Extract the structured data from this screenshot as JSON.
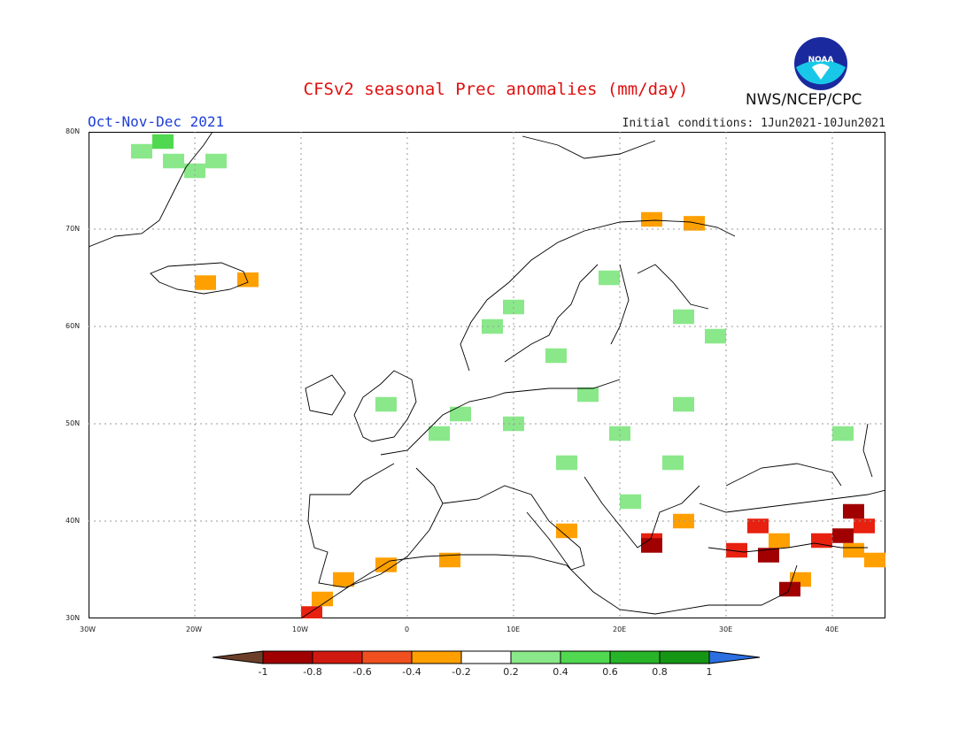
{
  "header": {
    "title": "CFSv2 seasonal Prec anomalies (mm/day)",
    "period": "Oct-Nov-Dec 2021",
    "initial_conditions": "Initial conditions: 1Jun2021-10Jun2021",
    "agency": "NWS/NCEP/CPC",
    "logo_text": "NOAA"
  },
  "map": {
    "lon_range": [
      -30,
      45
    ],
    "lat_range": [
      30,
      80
    ],
    "lat_ticks": [
      "80N",
      "70N",
      "60N",
      "50N",
      "40N",
      "30N"
    ],
    "lon_ticks": [
      "30W",
      "20W",
      "10W",
      "0",
      "10E",
      "20E",
      "30E",
      "40E"
    ],
    "grid": "dotted",
    "anomaly_cells": [
      {
        "lon": -23,
        "lat": 79,
        "category": "0.4-0.6"
      },
      {
        "lon": -25,
        "lat": 78,
        "category": "0.2-0.4"
      },
      {
        "lon": -22,
        "lat": 77,
        "category": "0.2-0.4"
      },
      {
        "lon": -20,
        "lat": 76,
        "category": "0.2-0.4"
      },
      {
        "lon": -18,
        "lat": 77,
        "category": "0.2-0.4"
      },
      {
        "lon": -19,
        "lat": 64.5,
        "category": "-0.4--0.2"
      },
      {
        "lon": -15,
        "lat": 64.8,
        "category": "-0.4--0.2"
      },
      {
        "lon": 10,
        "lat": 62,
        "category": "0.2-0.4"
      },
      {
        "lon": 8,
        "lat": 60,
        "category": "0.2-0.4"
      },
      {
        "lon": 19,
        "lat": 65,
        "category": "0.2-0.4"
      },
      {
        "lon": 26,
        "lat": 61,
        "category": "0.2-0.4"
      },
      {
        "lon": 29,
        "lat": 59,
        "category": "0.2-0.4"
      },
      {
        "lon": 14,
        "lat": 57,
        "category": "0.2-0.4"
      },
      {
        "lon": -2,
        "lat": 52,
        "category": "0.2-0.4"
      },
      {
        "lon": 5,
        "lat": 51,
        "category": "0.2-0.4"
      },
      {
        "lon": 10,
        "lat": 50,
        "category": "0.2-0.4"
      },
      {
        "lon": 3,
        "lat": 49,
        "category": "0.2-0.4"
      },
      {
        "lon": 17,
        "lat": 53,
        "category": "0.2-0.4"
      },
      {
        "lon": 26,
        "lat": 52,
        "category": "0.2-0.4"
      },
      {
        "lon": 20,
        "lat": 49,
        "category": "0.2-0.4"
      },
      {
        "lon": 25,
        "lat": 46,
        "category": "0.2-0.4"
      },
      {
        "lon": 21,
        "lat": 42,
        "category": "0.2-0.4"
      },
      {
        "lon": 15,
        "lat": 46,
        "category": "0.2-0.4"
      },
      {
        "lon": 41,
        "lat": 49,
        "category": "0.2-0.4"
      },
      {
        "lon": 23,
        "lat": 71,
        "category": "-0.4--0.2"
      },
      {
        "lon": 27,
        "lat": 70.6,
        "category": "-0.4--0.2"
      },
      {
        "lon": -8,
        "lat": 32,
        "category": "-0.4--0.2"
      },
      {
        "lon": -6,
        "lat": 34,
        "category": "-0.4--0.2"
      },
      {
        "lon": -2,
        "lat": 35.5,
        "category": "-0.4--0.2"
      },
      {
        "lon": 4,
        "lat": 36,
        "category": "-0.4--0.2"
      },
      {
        "lon": 15,
        "lat": 39,
        "category": "-0.4--0.2"
      },
      {
        "lon": 26,
        "lat": 40,
        "category": "-0.4--0.2"
      },
      {
        "lon": 35,
        "lat": 38,
        "category": "-0.4--0.2"
      },
      {
        "lon": 42,
        "lat": 37,
        "category": "-0.4--0.2"
      },
      {
        "lon": 44,
        "lat": 36,
        "category": "-0.4--0.2"
      },
      {
        "lon": 37,
        "lat": 34,
        "category": "-0.4--0.2"
      },
      {
        "lon": 23,
        "lat": 38,
        "category": "-0.6--0.4"
      },
      {
        "lon": 33,
        "lat": 39.5,
        "category": "-0.6--0.4"
      },
      {
        "lon": 31,
        "lat": 37,
        "category": "-0.6--0.4"
      },
      {
        "lon": 39,
        "lat": 38,
        "category": "-0.6--0.4"
      },
      {
        "lon": 43,
        "lat": 39.5,
        "category": "-0.6--0.4"
      },
      {
        "lon": -9,
        "lat": 30.5,
        "category": "-0.6--0.4"
      },
      {
        "lon": 23,
        "lat": 37.5,
        "category": "-0.8--0.6"
      },
      {
        "lon": 34,
        "lat": 36.5,
        "category": "-0.8--0.6"
      },
      {
        "lon": 41,
        "lat": 38.5,
        "category": "-0.8--0.6"
      },
      {
        "lon": 42,
        "lat": 41,
        "category": "-0.8--0.6"
      },
      {
        "lon": 36,
        "lat": 33,
        "category": "-0.8--0.6"
      }
    ]
  },
  "legend": {
    "labels": [
      "-1",
      "-0.8",
      "-0.6",
      "-0.4",
      "-0.2",
      "0.2",
      "0.4",
      "0.6",
      "0.8",
      "1"
    ],
    "colors": [
      "#6b3f2a",
      "#a00000",
      "#d01a10",
      "#f05020",
      "#ffa000",
      "#ffffff",
      "#8ae88a",
      "#50d850",
      "#28b428",
      "#149614",
      "#2b6fe0"
    ]
  },
  "colors": {
    "title": "#e01010",
    "period": "#1f3fd8",
    "category": {
      "-0.8--0.6": "#a00000",
      "-0.6--0.4": "#e82010",
      "-0.4--0.2": "#ffa000",
      "0.2-0.4": "#8ae88a",
      "0.4-0.6": "#50d850"
    }
  }
}
